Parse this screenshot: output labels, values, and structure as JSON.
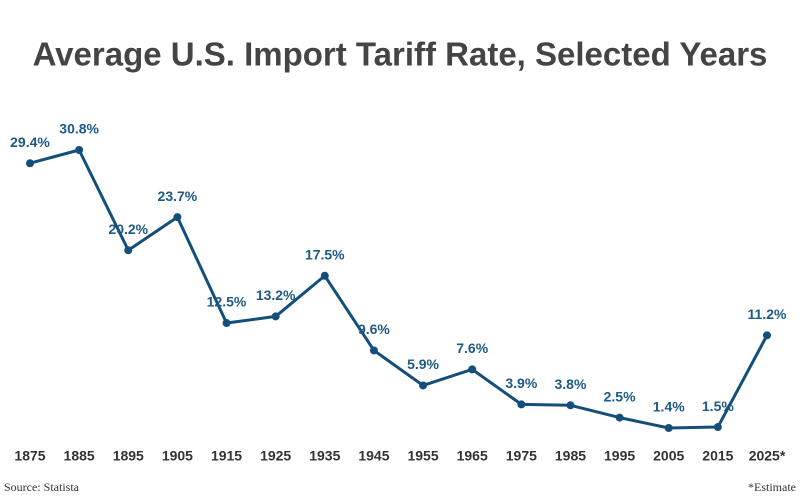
{
  "chart_data": {
    "type": "line",
    "title": "Average U.S. Import Tariff Rate, Selected Years",
    "categories": [
      "1875",
      "1885",
      "1895",
      "1905",
      "1915",
      "1925",
      "1935",
      "1945",
      "1955",
      "1965",
      "1975",
      "1985",
      "1995",
      "2005",
      "2015",
      "2025*"
    ],
    "series": [
      {
        "color": "#134f7a",
        "values": [
          29.4,
          30.8,
          20.2,
          23.7,
          12.5,
          13.2,
          17.5,
          9.6,
          5.9,
          7.6,
          3.9,
          3.8,
          2.5,
          1.4,
          1.5,
          11.2
        ],
        "value_labels": [
          "29.4%",
          "30.8%",
          "20.2%",
          "23.7%",
          "12.5%",
          "13.2%",
          "17.5%",
          "9.6%",
          "5.9%",
          "7.6%",
          "3.9%",
          "3.8%",
          "2.5%",
          "1.4%",
          "1.5%",
          "11.2%"
        ]
      }
    ],
    "source": "Source: Statista",
    "note": "*Estimate"
  }
}
